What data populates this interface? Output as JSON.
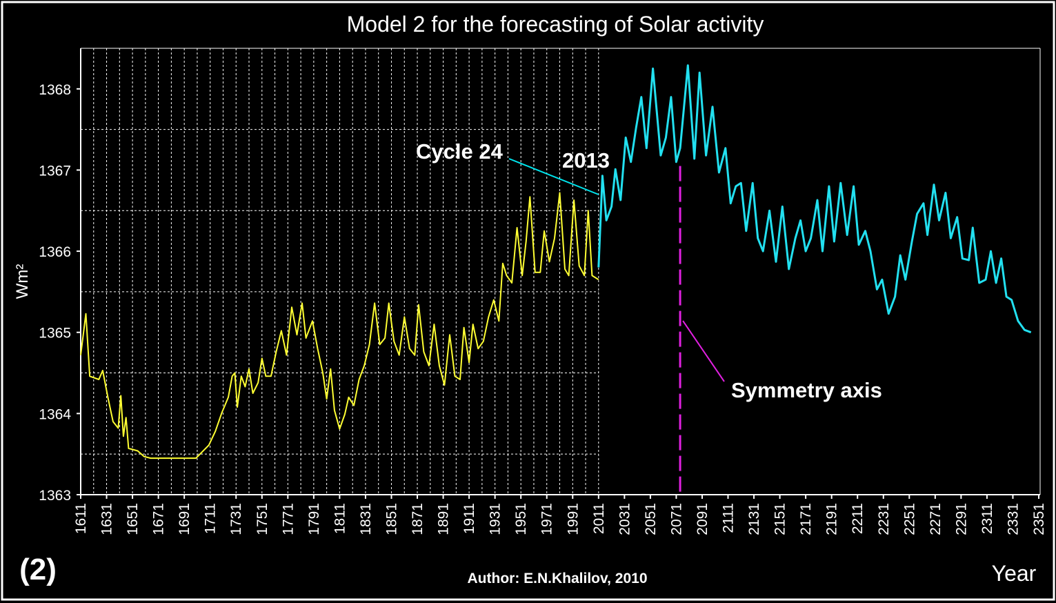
{
  "chart_data": {
    "type": "line",
    "title": "Model 2 for the forecasting of Solar activity",
    "xlabel": "Year",
    "ylabel": "Wm²",
    "figure_label": "(2)",
    "author": "Author: E.N.Khalilov, 2010",
    "annotations": [
      {
        "text": "Cycle 24",
        "color": "#00e5ee"
      },
      {
        "text": "2013",
        "color": "#00e5ee"
      },
      {
        "text": "Symmetry axis",
        "color": "#ff66ff",
        "x": 2074,
        "y": 1367.05,
        "line_color": "#e020e0"
      }
    ],
    "xlim": [
      1611,
      2351
    ],
    "ylim": [
      1363,
      1368.5
    ],
    "xticks": [
      1611,
      1631,
      1651,
      1671,
      1691,
      1711,
      1731,
      1751,
      1771,
      1791,
      1811,
      1831,
      1851,
      1871,
      1891,
      1911,
      1931,
      1951,
      1971,
      1991,
      2011,
      2031,
      2051,
      2071,
      2091,
      2111,
      2131,
      2151,
      2171,
      2191,
      2211,
      2231,
      2251,
      2271,
      2291,
      2311,
      2331,
      2351
    ],
    "yticks": [
      1363,
      1364,
      1365,
      1366,
      1367,
      1368
    ],
    "grid": true,
    "series": [
      {
        "color": "#ffff33",
        "x": [
          1611,
          1615,
          1618,
          1625,
          1628,
          1632,
          1636,
          1640,
          1642,
          1644,
          1646,
          1648,
          1655,
          1660,
          1665,
          1700,
          1705,
          1710,
          1715,
          1720,
          1725,
          1728,
          1730,
          1732,
          1735,
          1738,
          1741,
          1744,
          1748,
          1751,
          1754,
          1758,
          1762,
          1766,
          1770,
          1774,
          1778,
          1782,
          1785,
          1790,
          1794,
          1798,
          1801,
          1804,
          1807,
          1811,
          1815,
          1818,
          1822,
          1826,
          1830,
          1834,
          1838,
          1842,
          1846,
          1849,
          1853,
          1857,
          1861,
          1865,
          1869,
          1872,
          1876,
          1880,
          1884,
          1888,
          1892,
          1896,
          1900,
          1904,
          1907,
          1911,
          1914,
          1918,
          1922,
          1926,
          1930,
          1934,
          1937,
          1940,
          1944,
          1948,
          1952,
          1955,
          1958,
          1962,
          1966,
          1969,
          1973,
          1977,
          1981,
          1985,
          1988,
          1992,
          1996,
          2000,
          2003,
          2006,
          2011
        ],
        "values": [
          1364.72,
          1365.23,
          1364.46,
          1364.42,
          1364.53,
          1364.2,
          1363.9,
          1363.82,
          1364.22,
          1363.72,
          1363.95,
          1363.57,
          1363.54,
          1363.47,
          1363.45,
          1363.45,
          1363.53,
          1363.61,
          1363.78,
          1364.01,
          1364.2,
          1364.46,
          1364.5,
          1364.08,
          1364.46,
          1364.33,
          1364.55,
          1364.25,
          1364.38,
          1364.68,
          1364.46,
          1364.46,
          1364.76,
          1365.02,
          1364.72,
          1365.31,
          1364.97,
          1365.36,
          1364.93,
          1365.14,
          1364.8,
          1364.5,
          1364.18,
          1364.55,
          1364.04,
          1363.81,
          1363.99,
          1364.2,
          1364.1,
          1364.42,
          1364.59,
          1364.85,
          1365.36,
          1364.85,
          1364.93,
          1365.36,
          1364.89,
          1364.72,
          1365.19,
          1364.8,
          1364.72,
          1365.34,
          1364.76,
          1364.59,
          1365.1,
          1364.59,
          1364.35,
          1364.97,
          1364.46,
          1364.42,
          1365.06,
          1364.63,
          1365.1,
          1364.8,
          1364.89,
          1365.19,
          1365.4,
          1365.14,
          1365.85,
          1365.7,
          1365.61,
          1366.29,
          1365.7,
          1366.12,
          1366.67,
          1365.74,
          1365.74,
          1366.25,
          1365.87,
          1366.16,
          1366.72,
          1365.78,
          1365.7,
          1366.63,
          1365.82,
          1365.7,
          1366.5,
          1365.7,
          1365.65
        ]
      },
      {
        "color": "#22e0f0",
        "x": [
          2011,
          2014,
          2017,
          2021,
          2024,
          2028,
          2032,
          2036,
          2040,
          2044,
          2048,
          2053,
          2059,
          2063,
          2067,
          2071,
          2074,
          2080,
          2085,
          2089,
          2094,
          2099,
          2104,
          2109,
          2113,
          2117,
          2121,
          2125,
          2130,
          2134,
          2138,
          2143,
          2148,
          2153,
          2158,
          2163,
          2167,
          2171,
          2175,
          2180,
          2184,
          2189,
          2193,
          2198,
          2203,
          2208,
          2212,
          2217,
          2221,
          2226,
          2230,
          2235,
          2240,
          2244,
          2248,
          2253,
          2257,
          2262,
          2265,
          2270,
          2274,
          2279,
          2283,
          2288,
          2292,
          2297,
          2300,
          2305,
          2310,
          2314,
          2318,
          2322,
          2326,
          2330,
          2335,
          2340,
          2345
        ],
        "values": [
          1365.8,
          1366.93,
          1366.38,
          1366.55,
          1367.01,
          1366.63,
          1367.4,
          1367.1,
          1367.52,
          1367.9,
          1367.27,
          1368.25,
          1367.18,
          1367.4,
          1367.9,
          1367.1,
          1367.27,
          1368.29,
          1367.14,
          1368.2,
          1367.18,
          1367.78,
          1366.97,
          1367.27,
          1366.59,
          1366.8,
          1366.84,
          1366.25,
          1366.84,
          1366.16,
          1366.0,
          1366.5,
          1365.87,
          1366.55,
          1365.78,
          1366.16,
          1366.38,
          1366.0,
          1366.16,
          1366.63,
          1366.0,
          1366.8,
          1366.12,
          1366.84,
          1366.2,
          1366.8,
          1366.08,
          1366.25,
          1366.0,
          1365.53,
          1365.65,
          1365.23,
          1365.44,
          1365.95,
          1365.65,
          1366.12,
          1366.46,
          1366.59,
          1366.2,
          1366.82,
          1366.38,
          1366.72,
          1366.16,
          1366.42,
          1365.91,
          1365.89,
          1366.29,
          1365.61,
          1365.65,
          1366.0,
          1365.61,
          1365.91,
          1365.44,
          1365.4,
          1365.14,
          1365.03,
          1365.0
        ]
      }
    ]
  }
}
